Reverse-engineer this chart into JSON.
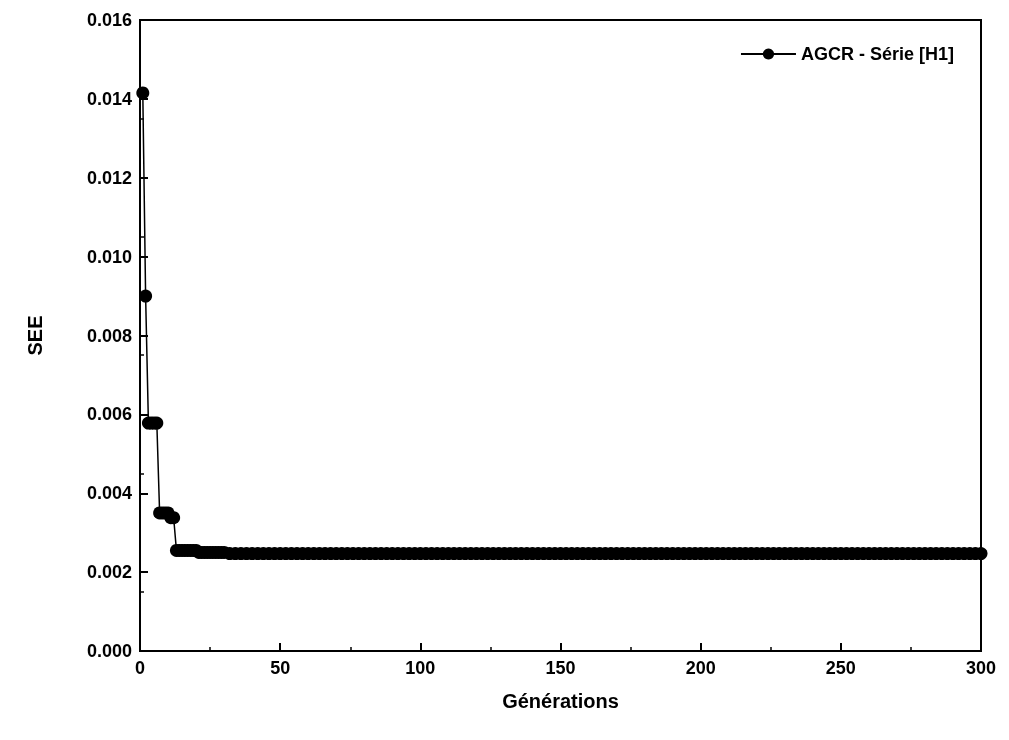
{
  "chart_data": {
    "type": "line",
    "xlabel": "Générations",
    "ylabel": "SEE",
    "xlim": [
      0,
      300
    ],
    "xticks": [
      0,
      50,
      100,
      150,
      200,
      250,
      300
    ],
    "ylim": [
      0,
      0.016
    ],
    "yticks": [
      {
        "value": 0,
        "label": "0.000"
      },
      {
        "value": 0.002,
        "label": "0.002"
      },
      {
        "value": 0.004,
        "label": "0.004"
      },
      {
        "value": 0.006,
        "label": "0.006"
      },
      {
        "value": 0.008,
        "label": "0.008"
      },
      {
        "value": 0.01,
        "label": "0.010"
      },
      {
        "value": 0.012,
        "label": "0.012"
      },
      {
        "value": 0.014,
        "label": "0.014"
      },
      {
        "value": 0.016,
        "label": "0.016"
      }
    ],
    "grid": false,
    "legend": "top right",
    "marker": "circle",
    "line_style": "solid",
    "series": [
      {
        "name": "AGCR - Série [H1]",
        "color": "#000000",
        "x": [
          1,
          2,
          3,
          4,
          5,
          6,
          7,
          8,
          9,
          10,
          11,
          12,
          13,
          14,
          15,
          16,
          17,
          18,
          19,
          20,
          21,
          22,
          23,
          24,
          25,
          26,
          27,
          28,
          29,
          30,
          32,
          34,
          36,
          38,
          40,
          42,
          44,
          46,
          48,
          50,
          52,
          54,
          56,
          58,
          60,
          62,
          64,
          66,
          68,
          70,
          72,
          74,
          76,
          78,
          80,
          82,
          84,
          86,
          88,
          90,
          92,
          94,
          96,
          98,
          100,
          102,
          104,
          106,
          108,
          110,
          112,
          114,
          116,
          118,
          120,
          122,
          124,
          126,
          128,
          130,
          132,
          134,
          136,
          138,
          140,
          142,
          144,
          146,
          148,
          150,
          152,
          154,
          156,
          158,
          160,
          162,
          164,
          166,
          168,
          170,
          172,
          174,
          176,
          178,
          180,
          182,
          184,
          186,
          188,
          190,
          192,
          194,
          196,
          198,
          200,
          202,
          204,
          206,
          208,
          210,
          212,
          214,
          216,
          218,
          220,
          222,
          224,
          226,
          228,
          230,
          232,
          234,
          236,
          238,
          240,
          242,
          244,
          246,
          248,
          250,
          252,
          254,
          256,
          258,
          260,
          262,
          264,
          266,
          268,
          270,
          272,
          274,
          276,
          278,
          280,
          282,
          284,
          286,
          288,
          290,
          292,
          294,
          296,
          298,
          300
        ],
        "values": [
          0.01415,
          0.009,
          0.00578,
          0.00578,
          0.00578,
          0.00578,
          0.0035,
          0.0035,
          0.0035,
          0.0035,
          0.00338,
          0.00338,
          0.00255,
          0.00255,
          0.00255,
          0.00255,
          0.00255,
          0.00255,
          0.00255,
          0.00255,
          0.0025,
          0.0025,
          0.0025,
          0.0025,
          0.0025,
          0.0025,
          0.0025,
          0.0025,
          0.0025,
          0.0025,
          0.00247,
          0.00247,
          0.00247,
          0.00247,
          0.00247,
          0.00247,
          0.00247,
          0.00247,
          0.00247,
          0.00247,
          0.00247,
          0.00247,
          0.00247,
          0.00247,
          0.00247,
          0.00247,
          0.00247,
          0.00247,
          0.00247,
          0.00247,
          0.00247,
          0.00247,
          0.00247,
          0.00247,
          0.00247,
          0.00247,
          0.00247,
          0.00247,
          0.00247,
          0.00247,
          0.00247,
          0.00247,
          0.00247,
          0.00247,
          0.00247,
          0.00247,
          0.00247,
          0.00247,
          0.00247,
          0.00247,
          0.00247,
          0.00247,
          0.00247,
          0.00247,
          0.00247,
          0.00247,
          0.00247,
          0.00247,
          0.00247,
          0.00247,
          0.00247,
          0.00247,
          0.00247,
          0.00247,
          0.00247,
          0.00247,
          0.00247,
          0.00247,
          0.00247,
          0.00247,
          0.00247,
          0.00247,
          0.00247,
          0.00247,
          0.00247,
          0.00247,
          0.00247,
          0.00247,
          0.00247,
          0.00247,
          0.00247,
          0.00247,
          0.00247,
          0.00247,
          0.00247,
          0.00247,
          0.00247,
          0.00247,
          0.00247,
          0.00247,
          0.00247,
          0.00247,
          0.00247,
          0.00247,
          0.00247,
          0.00247,
          0.00247,
          0.00247,
          0.00247,
          0.00247,
          0.00247,
          0.00247,
          0.00247,
          0.00247,
          0.00247,
          0.00247,
          0.00247,
          0.00247,
          0.00247,
          0.00247,
          0.00247,
          0.00247,
          0.00247,
          0.00247,
          0.00247,
          0.00247,
          0.00247,
          0.00247,
          0.00247,
          0.00247,
          0.00247,
          0.00247,
          0.00247,
          0.00247,
          0.00247,
          0.00247,
          0.00247,
          0.00247,
          0.00247,
          0.00247,
          0.00247,
          0.00247,
          0.00247,
          0.00247,
          0.00247,
          0.00247,
          0.00247,
          0.00247,
          0.00247,
          0.00247,
          0.00247,
          0.00247,
          0.00247,
          0.00247,
          0.00247
        ]
      }
    ]
  }
}
